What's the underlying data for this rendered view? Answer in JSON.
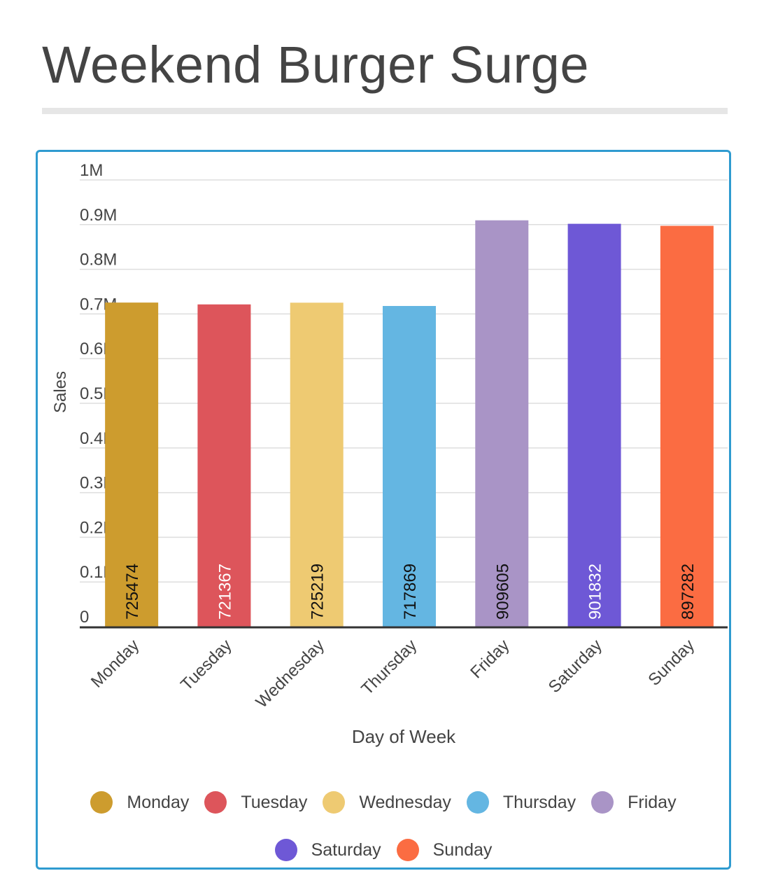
{
  "title": "Weekend Burger Surge",
  "chart_data": {
    "type": "bar",
    "categories": [
      "Monday",
      "Tuesday",
      "Wednesday",
      "Thursday",
      "Friday",
      "Saturday",
      "Sunday"
    ],
    "values": [
      725474,
      721367,
      725219,
      717869,
      909605,
      901832,
      897282
    ],
    "data_labels": [
      "725474",
      "721367",
      "725219",
      "717869",
      "909605",
      "901832",
      "897282"
    ],
    "colors": [
      "#cd9c2e",
      "#dd555b",
      "#eeca72",
      "#64b6e2",
      "#a994c6",
      "#6e58d6",
      "#fb6c42"
    ],
    "data_label_colors": [
      "#111111",
      "#ffffff",
      "#111111",
      "#111111",
      "#111111",
      "#ffffff",
      "#111111"
    ],
    "xlabel": "Day of Week",
    "ylabel": "Sales",
    "ylim": [
      0,
      1000000
    ],
    "y_ticks": [
      0,
      100000,
      200000,
      300000,
      400000,
      500000,
      600000,
      700000,
      800000,
      900000,
      1000000
    ],
    "y_tick_labels": [
      "0",
      "0.1M",
      "0.2M",
      "0.3M",
      "0.4M",
      "0.5M",
      "0.6M",
      "0.7M",
      "0.8M",
      "0.9M",
      "1M"
    ],
    "grid": true,
    "legend_position": "bottom",
    "legend": [
      "Monday",
      "Tuesday",
      "Wednesday",
      "Thursday",
      "Friday",
      "Saturday",
      "Sunday"
    ]
  }
}
